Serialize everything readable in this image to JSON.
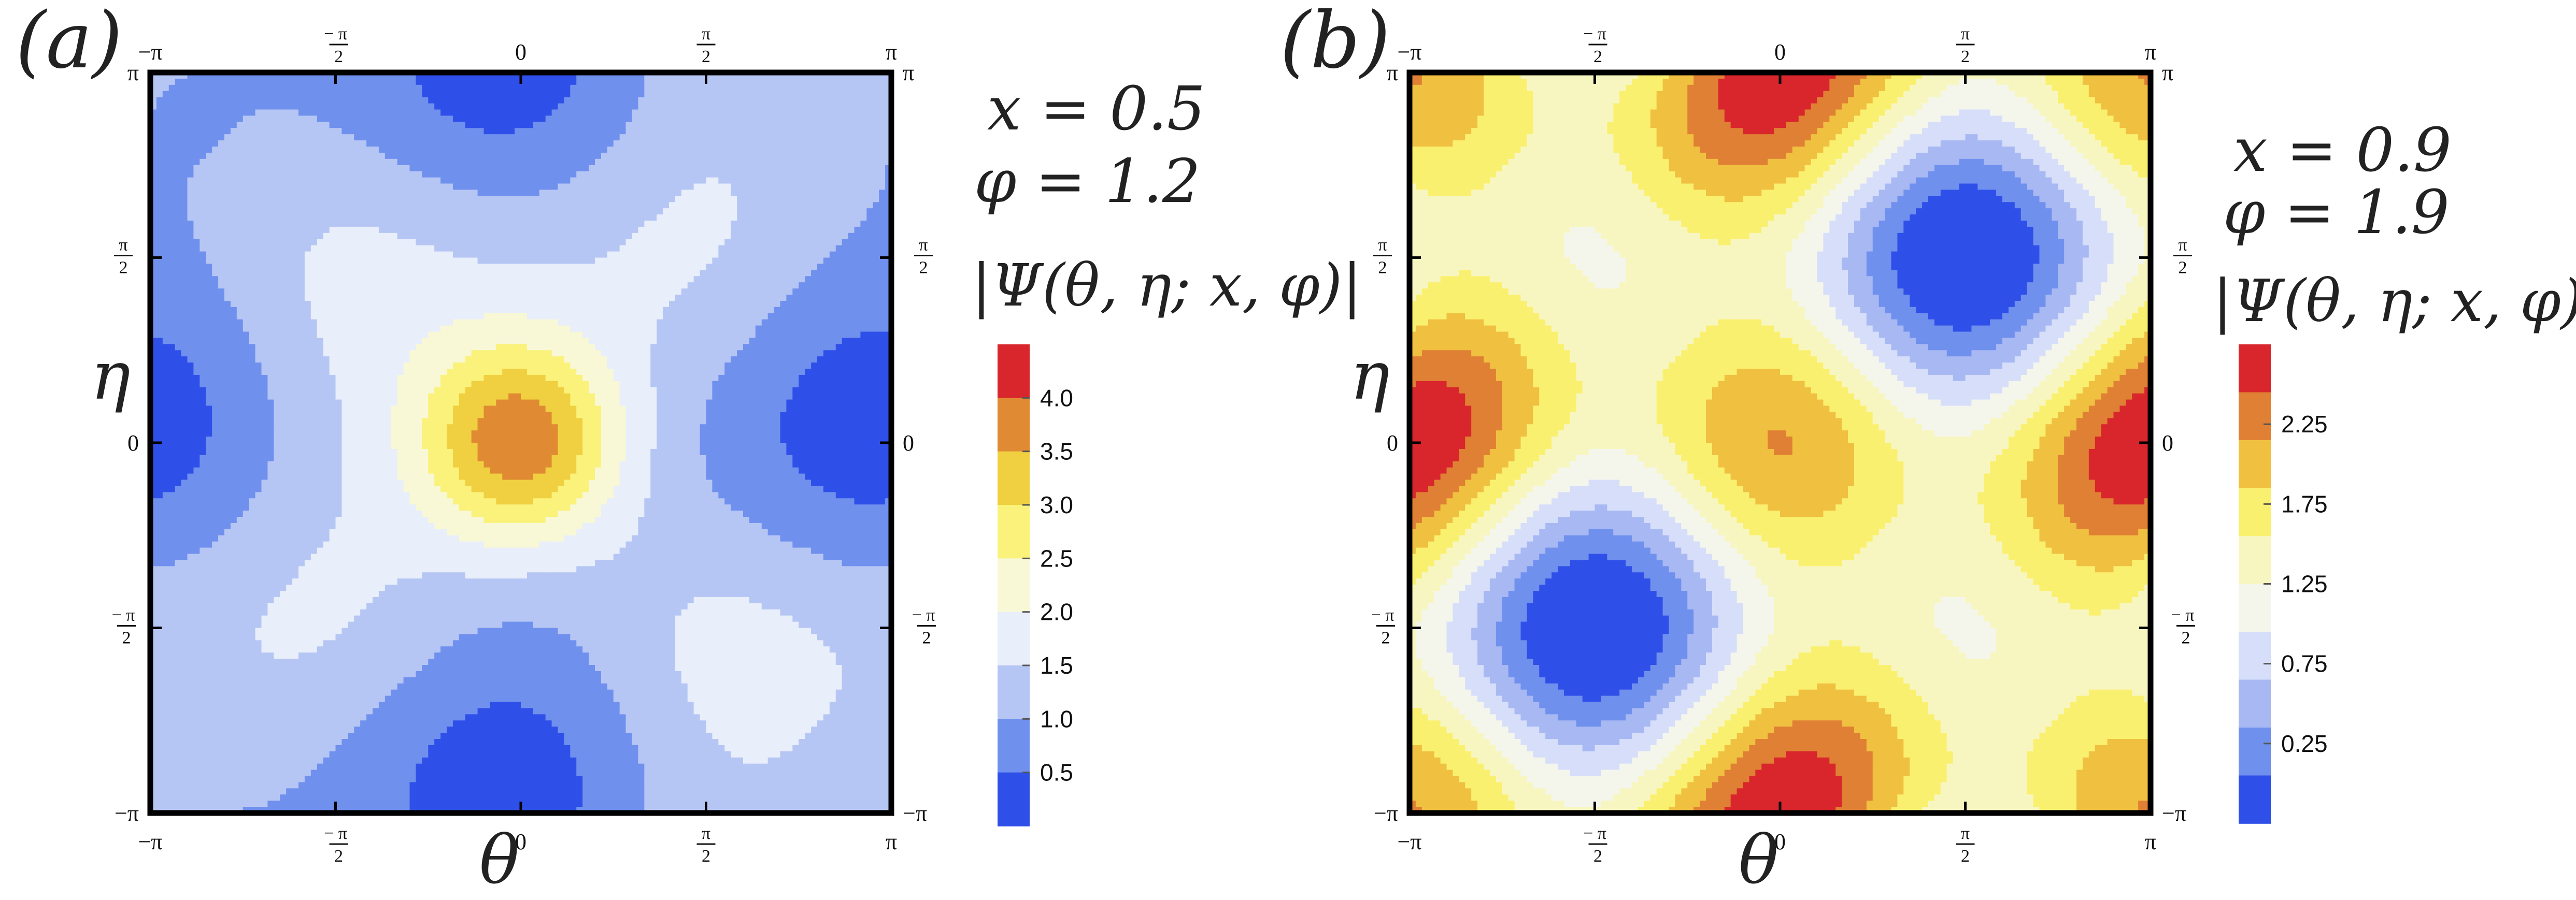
{
  "chart_data": [
    {
      "type": "heatmap",
      "panel_label": "(a)",
      "xlabel": "θ",
      "ylabel": "η",
      "xlim": [
        -3.14159,
        3.14159
      ],
      "ylim": [
        -3.14159,
        3.14159
      ],
      "x_ticks": [
        "-π",
        "-π/2",
        "0",
        "π/2",
        "π"
      ],
      "y_ticks": [
        "π",
        "π/2",
        "0",
        "-π/2",
        "-π"
      ],
      "params": [
        "x = 0.5",
        "φ = 1.2"
      ],
      "colorbar_title": "|Ψ(θ, η; x, φ)|",
      "colorbar_ticks": [
        "4.0",
        "3.5",
        "3.0",
        "2.5",
        "2.0",
        "1.5",
        "1.0",
        "0.5"
      ],
      "contour_levels": [
        0.5,
        1.0,
        1.5,
        2.0,
        2.5,
        3.0,
        3.5,
        4.0
      ],
      "value_range": [
        0.0,
        4.5
      ],
      "peak": {
        "theta": 0,
        "eta": 0,
        "value": 4.3
      },
      "colors": [
        "#2f50e8",
        "#7090ee",
        "#b6c6f4",
        "#e8eefa",
        "#f8f8d6",
        "#faf27a",
        "#f0d040",
        "#e08a34",
        "#d8262c"
      ]
    },
    {
      "type": "heatmap",
      "panel_label": "(b)",
      "xlabel": "θ",
      "ylabel": "η",
      "xlim": [
        -3.14159,
        3.14159
      ],
      "ylim": [
        -3.14159,
        3.14159
      ],
      "x_ticks": [
        "-π",
        "-π/2",
        "0",
        "π/2",
        "π"
      ],
      "y_ticks": [
        "π",
        "π/2",
        "0",
        "-π/2",
        "-π"
      ],
      "params": [
        "x = 0.9",
        "φ = 1.9"
      ],
      "colorbar_title": "|Ψ(θ, η; x, φ)|",
      "colorbar_ticks": [
        "2.25",
        "1.75",
        "1.25",
        "0.75",
        "0.25"
      ],
      "contour_levels": [
        0.25,
        0.5,
        0.75,
        1.0,
        1.25,
        1.5,
        1.75,
        2.0,
        2.25
      ],
      "value_range": [
        0.0,
        2.5
      ],
      "peak": {
        "theta": 0,
        "eta": 0,
        "value": 2.4
      },
      "colors": [
        "#2f50e8",
        "#7090ee",
        "#a8b8f2",
        "#d6defa",
        "#f4f6ec",
        "#f8f6c0",
        "#faf070",
        "#f0c040",
        "#e08034",
        "#d8262c"
      ]
    }
  ]
}
